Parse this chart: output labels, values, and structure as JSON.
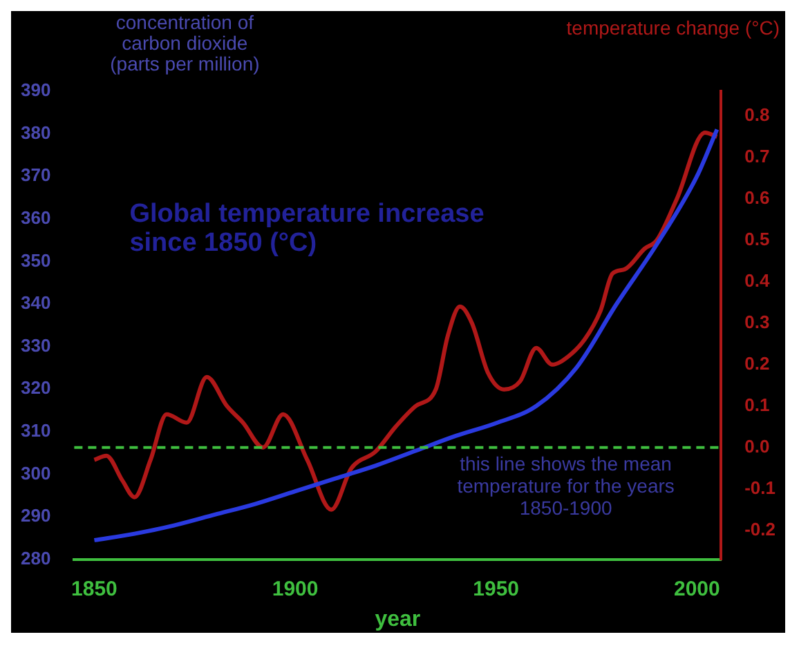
{
  "chart_data": {
    "type": "line",
    "title": "Global temperature increase since 1850 (°C)",
    "xlabel": "year",
    "ylabel": "concentration of carbon dioxide (parts per million)",
    "y2label": "temperature change (°C)",
    "xlim": [
      1845,
      2006
    ],
    "xticks": [
      1850,
      1900,
      1950,
      2000
    ],
    "ylim": [
      280,
      390
    ],
    "yticks": [
      280,
      290,
      300,
      310,
      320,
      330,
      340,
      350,
      360,
      370,
      380,
      390
    ],
    "y2lim": [
      -0.27,
      0.86
    ],
    "y2ticks": [
      -0.2,
      -0.1,
      {
        "value": 0,
        "label": "0.0"
      },
      0.1,
      0.2,
      0.3,
      0.4,
      0.5,
      0.6,
      0.7,
      0.8
    ],
    "grid": false,
    "legend": false,
    "marker": "none",
    "line_style": "solid",
    "series": [
      {
        "color": "#2a3ae0",
        "axis": "y",
        "x": [
          1850,
          1860,
          1870,
          1880,
          1890,
          1900,
          1910,
          1920,
          1930,
          1940,
          1950,
          1960,
          1970,
          1980,
          1990,
          2000,
          2005
        ],
        "values": [
          284.5,
          286,
          288,
          290.5,
          293,
          296,
          299,
          302,
          305.5,
          309,
          312,
          316,
          325,
          340,
          354,
          370,
          381
        ]
      },
      {
        "color": "#b01818",
        "axis": "y2",
        "x": [
          1850,
          1853,
          1857,
          1860,
          1864,
          1868,
          1873,
          1878,
          1883,
          1887,
          1892,
          1897,
          1903,
          1909,
          1914,
          1920,
          1925,
          1930,
          1935,
          1938,
          1941,
          1944,
          1948,
          1952,
          1956,
          1960,
          1964,
          1968,
          1972,
          1976,
          1979,
          1982,
          1987,
          1990,
          1995,
          2002,
          2005
        ],
        "values": [
          -0.03,
          -0.02,
          -0.08,
          -0.12,
          -0.03,
          0.08,
          0.06,
          0.17,
          0.1,
          0.06,
          0.0,
          0.08,
          -0.03,
          -0.15,
          -0.05,
          -0.01,
          0.05,
          0.1,
          0.14,
          0.27,
          0.34,
          0.3,
          0.18,
          0.14,
          0.16,
          0.24,
          0.2,
          0.22,
          0.26,
          0.33,
          0.42,
          0.43,
          0.48,
          0.5,
          0.6,
          0.76,
          0.75
        ]
      }
    ],
    "ref_lines": [
      {
        "axis": "y2",
        "value": 0,
        "label": "this line shows the mean temperature for the years 1850-1900",
        "color": "#3fbf3f",
        "line_style": "dashed"
      }
    ]
  }
}
